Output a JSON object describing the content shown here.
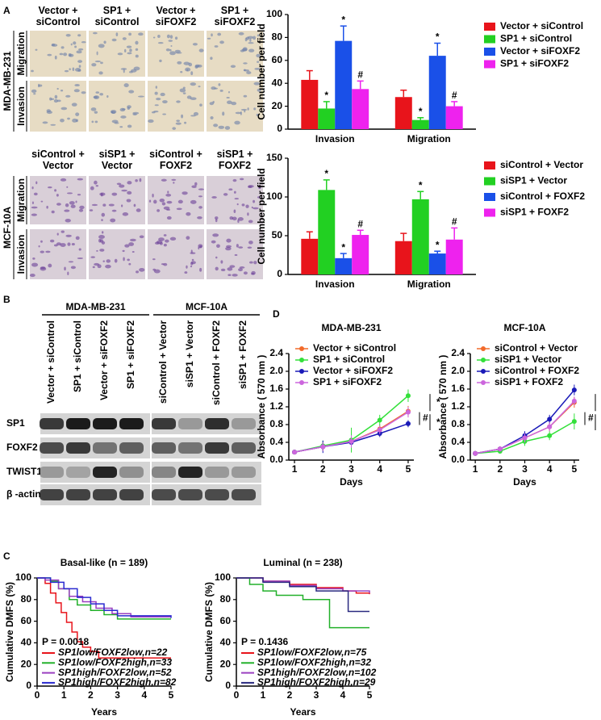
{
  "panel_labels": [
    "A",
    "B",
    "C",
    "D"
  ],
  "panel_A": {
    "top": {
      "cell_line": "MDA-MB-231",
      "columns": [
        "Vector + siControl",
        "SP1 + siControl",
        "Vector + siFOXF2",
        "SP1 + siFOXF2"
      ],
      "rows": [
        "Migration",
        "Invasion"
      ]
    },
    "bottom": {
      "cell_line": "MCF-10A",
      "columns": [
        "siControl + Vector",
        "siSP1 + Vector",
        "siControl + FOXF2",
        "siSP1 + FOXF2"
      ],
      "rows": [
        "Migration",
        "Invasion"
      ]
    }
  },
  "panel_B": {
    "groups": [
      "MDA-MB-231",
      "MCF-10A"
    ],
    "lanes": [
      "Vector + siControl",
      "SP1 + siControl",
      "Vector + siFOXF2",
      "SP1 + siFOXF2",
      "siControl + Vector",
      "siSP1 + Vector",
      "siControl + FOXF2",
      "siSP1 + FOXF2"
    ],
    "proteins": [
      "SP1",
      "FOXF2",
      "TWIST1",
      "β -actin"
    ]
  },
  "chart_data": [
    {
      "type": "bar",
      "ylabel": "Cell number per field",
      "categories": [
        "Invasion",
        "Migration"
      ],
      "ylim": [
        0,
        100
      ],
      "yticks": [
        0,
        20,
        40,
        60,
        80,
        100
      ],
      "series": [
        {
          "name": "Vector + siControl",
          "color": "#e8141b",
          "values": [
            43,
            28
          ],
          "errors": [
            8,
            6
          ]
        },
        {
          "name": "SP1 + siControl",
          "color": "#22d022",
          "values": [
            18,
            8
          ],
          "errors": [
            6,
            2
          ],
          "marks": [
            "*",
            "*"
          ]
        },
        {
          "name": "Vector + siFOXF2",
          "color": "#1a50e8",
          "values": [
            77,
            64
          ],
          "errors": [
            13,
            11
          ],
          "marks": [
            "*",
            "*"
          ]
        },
        {
          "name": "SP1 + siFOXF2",
          "color": "#ee22ee",
          "values": [
            35,
            20
          ],
          "errors": [
            7,
            4
          ],
          "marks": [
            "#",
            "#"
          ]
        }
      ]
    },
    {
      "type": "bar",
      "ylabel": "Cell number per field",
      "categories": [
        "Invasion",
        "Migration"
      ],
      "ylim": [
        0,
        150
      ],
      "yticks": [
        0,
        50,
        100,
        150
      ],
      "series": [
        {
          "name": "siControl + Vector",
          "color": "#e8141b",
          "values": [
            46,
            43
          ],
          "errors": [
            9,
            10
          ]
        },
        {
          "name": "siSP1 + Vector",
          "color": "#22d022",
          "values": [
            109,
            97
          ],
          "errors": [
            13,
            10
          ],
          "marks": [
            "*",
            "*"
          ]
        },
        {
          "name": "siControl + FOXF2",
          "color": "#1a50e8",
          "values": [
            21,
            27
          ],
          "errors": [
            6,
            3
          ],
          "marks": [
            "*",
            "*"
          ]
        },
        {
          "name": "siSP1 + FOXF2",
          "color": "#ee22ee",
          "values": [
            51,
            45
          ],
          "errors": [
            6,
            15
          ],
          "marks": [
            "#",
            "#"
          ]
        }
      ]
    },
    {
      "type": "line",
      "title": "MDA-MB-231",
      "xlabel": "Days",
      "ylabel": "Absorbance ( 570 nm )",
      "x": [
        1,
        2,
        3,
        4,
        5
      ],
      "xlim": [
        0.8,
        5.2
      ],
      "xticks": [
        1,
        2,
        3,
        4,
        5
      ],
      "ylim": [
        0,
        2.4
      ],
      "yticks": [
        {
          "value": 0,
          "label": "0.0"
        },
        0.4,
        0.8,
        1.2,
        1.6,
        {
          "value": 2,
          "label": "2.0"
        },
        2.4
      ],
      "legend": "upper left",
      "significance": [
        "*",
        "#",
        "*"
      ],
      "series": [
        {
          "name": "Vector + siControl",
          "color": "#f26a2a",
          "values": [
            0.18,
            0.3,
            0.42,
            0.7,
            1.1
          ],
          "errors": [
            0.04,
            0.1,
            0.12,
            0.1,
            0.12
          ]
        },
        {
          "name": "SP1 + siControl",
          "color": "#33e03a",
          "values": [
            0.18,
            0.32,
            0.45,
            0.9,
            1.45
          ],
          "errors": [
            0.04,
            0.12,
            0.28,
            0.12,
            0.14
          ]
        },
        {
          "name": "Vector + siFOXF2",
          "color": "#1a1ab8",
          "values": [
            0.18,
            0.3,
            0.4,
            0.6,
            0.82
          ],
          "errors": [
            0.04,
            0.14,
            0.1,
            0.08,
            0.08
          ]
        },
        {
          "name": "SP1 + siFOXF2",
          "color": "#cc66dd",
          "values": [
            0.18,
            0.3,
            0.42,
            0.68,
            1.08
          ],
          "errors": [
            0.04,
            0.1,
            0.14,
            0.1,
            0.12
          ]
        }
      ]
    },
    {
      "type": "line",
      "title": "MCF-10A",
      "xlabel": "Days",
      "ylabel": "Absorbance ( 570 nm )",
      "x": [
        1,
        2,
        3,
        4,
        5
      ],
      "xlim": [
        0.8,
        5.2
      ],
      "xticks": [
        1,
        2,
        3,
        4,
        5
      ],
      "ylim": [
        0,
        2.4
      ],
      "yticks": [
        {
          "value": 0,
          "label": "0.0"
        },
        0.4,
        0.8,
        1.2,
        1.6,
        {
          "value": 2,
          "label": "2.0"
        },
        2.4
      ],
      "legend": "upper left",
      "significance": [
        "*",
        "#",
        "*"
      ],
      "series": [
        {
          "name": "siControl + Vector",
          "color": "#f26a2a",
          "values": [
            0.15,
            0.25,
            0.5,
            0.75,
            1.3
          ],
          "errors": [
            0.04,
            0.06,
            0.1,
            0.1,
            0.12
          ]
        },
        {
          "name": "siSP1 + Vector",
          "color": "#33e03a",
          "values": [
            0.15,
            0.2,
            0.42,
            0.55,
            0.87
          ],
          "errors": [
            0.04,
            0.05,
            0.1,
            0.1,
            0.18
          ]
        },
        {
          "name": "siControl + FOXF2",
          "color": "#1a1ab8",
          "values": [
            0.15,
            0.25,
            0.55,
            0.92,
            1.58
          ],
          "errors": [
            0.04,
            0.06,
            0.1,
            0.1,
            0.12
          ]
        },
        {
          "name": "siSP1 + FOXF2",
          "color": "#cc66dd",
          "values": [
            0.15,
            0.25,
            0.5,
            0.75,
            1.33
          ],
          "errors": [
            0.04,
            0.06,
            0.1,
            0.1,
            0.1
          ]
        }
      ]
    },
    {
      "type": "step",
      "title": "Basal-like (n = 189)",
      "xlabel": "Years",
      "ylabel": "Cumulative DMFS (%)",
      "xlim": [
        0,
        5
      ],
      "xticks": [
        0,
        1,
        2,
        3,
        4,
        5
      ],
      "ylim": [
        0,
        100
      ],
      "yticks": [
        0,
        20,
        40,
        60,
        80,
        100
      ],
      "annotation": "P = 0.0018",
      "legend": "lower left",
      "series": [
        {
          "name": "SP1low/FOXF2low,n=22",
          "color": "#e8141b",
          "x": [
            0,
            0.3,
            0.5,
            0.7,
            0.9,
            1.1,
            1.3,
            1.5,
            1.7,
            2,
            2.3,
            5
          ],
          "values": [
            100,
            95,
            86,
            77,
            68,
            59,
            50,
            41,
            36,
            32,
            26,
            26
          ]
        },
        {
          "name": "SP1low/FOXF2high,n=33",
          "color": "#22b02a",
          "x": [
            0,
            0.5,
            0.8,
            1.2,
            1.5,
            2,
            2.5,
            3,
            5
          ],
          "values": [
            100,
            97,
            90,
            80,
            75,
            70,
            66,
            62,
            62
          ]
        },
        {
          "name": "SP1high/FOXF2low,n=52",
          "color": "#9a3fc0",
          "x": [
            0,
            0.3,
            0.8,
            1.2,
            1.7,
            2.2,
            2.8,
            3.5,
            5
          ],
          "values": [
            100,
            98,
            90,
            83,
            78,
            72,
            67,
            64,
            64
          ]
        },
        {
          "name": "SP1high/FOXF2high,n=82",
          "color": "#2a2ad0",
          "x": [
            0,
            0.5,
            1,
            1.5,
            2,
            2.5,
            3,
            5
          ],
          "values": [
            100,
            96,
            90,
            82,
            76,
            70,
            65,
            63
          ]
        }
      ]
    },
    {
      "type": "step",
      "title": "Luminal (n = 238)",
      "xlabel": "Years",
      "ylabel": "Cumulative DMFS (%)",
      "xlim": [
        0,
        5
      ],
      "xticks": [
        0,
        1,
        2,
        3,
        4,
        5
      ],
      "ylim": [
        0,
        100
      ],
      "yticks": [
        0,
        20,
        40,
        60,
        80,
        100
      ],
      "annotation": "P = 0.1436",
      "legend": "lower left",
      "series": [
        {
          "name": "SP1low/FOXF2low,n=75",
          "color": "#e8141b",
          "x": [
            0,
            1,
            2,
            3,
            4,
            4.5,
            5
          ],
          "values": [
            100,
            97,
            94,
            91,
            88,
            86,
            85
          ]
        },
        {
          "name": "SP1low/FOXF2high,n=32",
          "color": "#22b02a",
          "x": [
            0,
            0.5,
            1,
            1.5,
            2.5,
            3.5,
            5
          ],
          "values": [
            100,
            94,
            88,
            84,
            80,
            54,
            54
          ]
        },
        {
          "name": "SP1high/FOXF2low,n=102",
          "color": "#9a3fc0",
          "x": [
            0,
            1,
            2,
            3,
            4,
            5
          ],
          "values": [
            100,
            97,
            93,
            90,
            88,
            86
          ]
        },
        {
          "name": "SP1high/FOXF2high,n=29",
          "color": "#2a2a80",
          "x": [
            0,
            1,
            2,
            3,
            4.2,
            5
          ],
          "values": [
            100,
            96,
            92,
            88,
            69,
            69
          ]
        }
      ]
    }
  ]
}
